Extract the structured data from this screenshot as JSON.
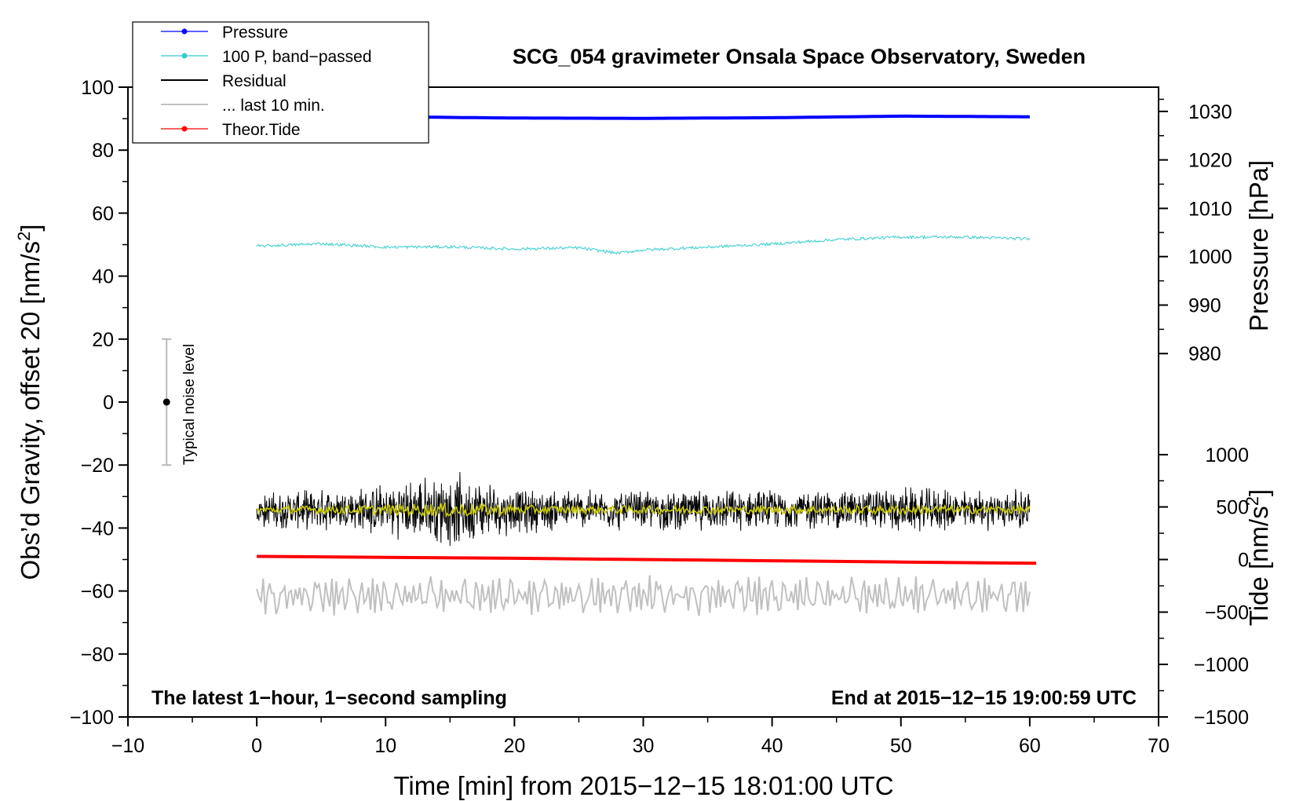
{
  "chart_data": {
    "type": "line",
    "title": "SCG_054 gravimeter Onsala Space Observatory, Sweden",
    "xlabel": "Time [min] from 2015−12−15 18:01:00 UTC",
    "ylabel": "Obs’d Gravity, offset 20 [nm/s",
    "ylabel_sup": "2",
    "ylabel_close": "]",
    "y2_pressure_label": "Pressure [hPa]",
    "y2_tide_label": "Tide [nm/s",
    "y2_tide_sup": "2",
    "y2_tide_close": "]",
    "xlim": [
      -10,
      70
    ],
    "ylim": [
      -100,
      100
    ],
    "x_ticks": [
      {
        "value": -10,
        "label": "−10"
      },
      {
        "value": 0,
        "label": "0"
      },
      {
        "value": 10,
        "label": "10"
      },
      {
        "value": 20,
        "label": "20"
      },
      {
        "value": 30,
        "label": "30"
      },
      {
        "value": 40,
        "label": "40"
      },
      {
        "value": 50,
        "label": "50"
      },
      {
        "value": 60,
        "label": "60"
      },
      {
        "value": 70,
        "label": "70"
      }
    ],
    "y_ticks": [
      {
        "value": 100,
        "label": "100"
      },
      {
        "value": 80,
        "label": "80"
      },
      {
        "value": 60,
        "label": "60"
      },
      {
        "value": 40,
        "label": "40"
      },
      {
        "value": 20,
        "label": "20"
      },
      {
        "value": 0,
        "label": "0"
      },
      {
        "value": -20,
        "label": "−20"
      },
      {
        "value": -40,
        "label": "−40"
      },
      {
        "value": -60,
        "label": "−60"
      },
      {
        "value": -80,
        "label": "−80"
      },
      {
        "value": -100,
        "label": "−100"
      }
    ],
    "pressure_axis": {
      "ticks": [
        {
          "hpa": 1030,
          "label": "1030",
          "y": 92.3
        },
        {
          "hpa": 1020,
          "label": "1020",
          "y": 76.9
        },
        {
          "hpa": 1010,
          "label": "1010",
          "y": 61.5
        },
        {
          "hpa": 1000,
          "label": "1000",
          "y": 46.2
        },
        {
          "hpa": 990,
          "label": "990",
          "y": 30.8
        },
        {
          "hpa": 980,
          "label": "980",
          "y": 15.4
        }
      ]
    },
    "tide_axis": {
      "ticks": [
        {
          "nms2": 1000,
          "label": "1000",
          "y": -16.7
        },
        {
          "nms2": 500,
          "label": "500",
          "y": -33.3
        },
        {
          "nms2": 0,
          "label": "0",
          "y": -50
        },
        {
          "nms2": -500,
          "label": "−500",
          "y": -66.7
        },
        {
          "nms2": -1000,
          "label": "−1000",
          "y": -83.3
        },
        {
          "nms2": -1500,
          "label": "−1500",
          "y": -100
        }
      ]
    },
    "series": [
      {
        "name": "Pressure",
        "color": "#0000ff",
        "x": [
          0,
          10,
          20,
          30,
          40,
          50,
          60
        ],
        "y": [
          90.3,
          90.6,
          90.2,
          90.1,
          90.3,
          90.8,
          90.6
        ]
      },
      {
        "name": "100 P, band−passed",
        "color": "#33cccc",
        "x": [
          0,
          5,
          10,
          15,
          20,
          25,
          28,
          30,
          35,
          40,
          45,
          50,
          55,
          60
        ],
        "y": [
          49.5,
          50.3,
          49.2,
          49.3,
          48.6,
          49.0,
          47.3,
          48.3,
          49.2,
          50.2,
          51.6,
          52.4,
          52.4,
          51.8
        ]
      },
      {
        "name": "Residual",
        "color": "#000000",
        "x": [
          0,
          5,
          10,
          15,
          20,
          25,
          30,
          35,
          40,
          45,
          50,
          55,
          60
        ],
        "y": [
          -34.5,
          -34.0,
          -34.5,
          -34.0,
          -34.5,
          -34.2,
          -34.3,
          -34.4,
          -34.2,
          -34.1,
          -34.3,
          -34.2,
          -34.1
        ],
        "spread": [
          6,
          7,
          9,
          13,
          8,
          7,
          7,
          7,
          7,
          7,
          8,
          7,
          7
        ]
      },
      {
        "name": "... last 10 min.",
        "color": "#c0c0c0",
        "x": [
          0,
          10,
          20,
          30,
          40,
          50,
          60
        ],
        "y": [
          -61.5,
          -61.5,
          -61.5,
          -61.5,
          -61.5,
          -61.5,
          -61.5
        ],
        "spread": [
          7,
          7,
          7,
          7,
          7,
          7,
          7
        ]
      },
      {
        "name": "Theor.Tide",
        "color": "#ff0000",
        "x": [
          0,
          10,
          20,
          30,
          40,
          50,
          60.5
        ],
        "y": [
          -49.0,
          -49.3,
          -49.6,
          -50.0,
          -50.4,
          -50.8,
          -51.2
        ]
      }
    ],
    "residual_mean": {
      "color": "#cccc00",
      "y": -34.2
    },
    "noise_bar": {
      "x": -7,
      "y": 0,
      "err": 20,
      "label": "Typical noise level"
    },
    "legend_position": "top-left",
    "annotations": {
      "bottom_left": "The latest 1−hour, 1−second sampling",
      "bottom_right": "End at 2015−12−15 19:00:59 UTC"
    }
  }
}
